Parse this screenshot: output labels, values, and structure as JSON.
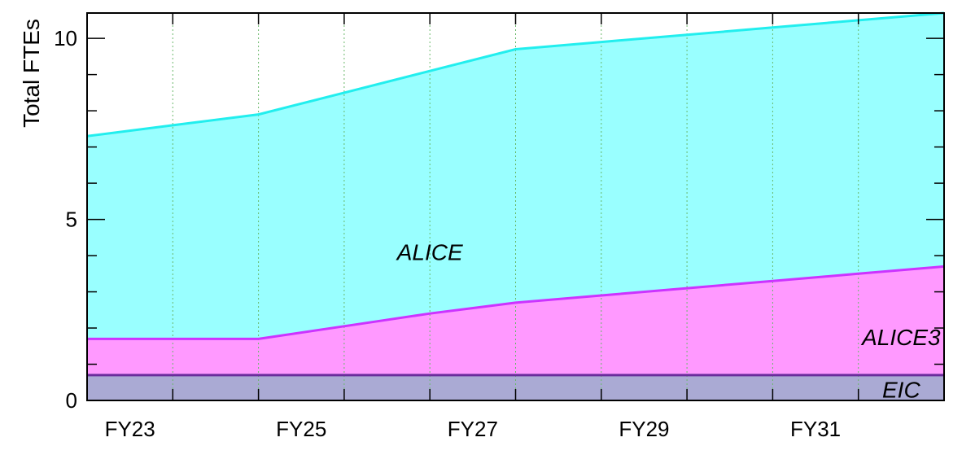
{
  "chart_data": {
    "type": "area",
    "stacked": true,
    "ylabel": "Total FTEs",
    "xlabel": "",
    "ylim": [
      0,
      10.7
    ],
    "xlim": [
      2023,
      2033
    ],
    "x": [
      2023,
      2024,
      2025,
      2026,
      2027,
      2028,
      2029,
      2030,
      2031,
      2032,
      2033
    ],
    "x_tick_labels": [
      {
        "x": 2023.5,
        "label": "FY23"
      },
      {
        "x": 2025.5,
        "label": "FY25"
      },
      {
        "x": 2027.5,
        "label": "FY27"
      },
      {
        "x": 2029.5,
        "label": "FY29"
      },
      {
        "x": 2031.5,
        "label": "FY31"
      }
    ],
    "y_ticks": [
      0,
      5,
      10
    ],
    "y_minor_step": 1,
    "grid": {
      "x": true,
      "y": false,
      "style": "dotted",
      "color": "#6ab86a"
    },
    "series": [
      {
        "name": "EIC",
        "color_fill": "#aaaad4",
        "color_line": "#6a2c9c",
        "cumulative": [
          0.7,
          0.7,
          0.7,
          0.7,
          0.7,
          0.7,
          0.7,
          0.7,
          0.7,
          0.7,
          0.7
        ],
        "label_at": [
          2032.5,
          0.3
        ]
      },
      {
        "name": "ALICE3",
        "color_fill": "#ff99ff",
        "color_line": "#cc33ff",
        "cumulative": [
          1.7,
          1.7,
          1.7,
          2.05,
          2.4,
          2.7,
          2.9,
          3.1,
          3.3,
          3.5,
          3.7
        ],
        "label_at": [
          2032.5,
          1.75
        ]
      },
      {
        "name": "ALICE",
        "color_fill": "#99ffff",
        "color_line": "#22eeee",
        "cumulative": [
          7.3,
          7.6,
          7.9,
          8.5,
          9.1,
          9.7,
          9.9,
          10.1,
          10.3,
          10.5,
          10.7
        ],
        "label_at": [
          2027.0,
          4.1
        ]
      }
    ]
  }
}
